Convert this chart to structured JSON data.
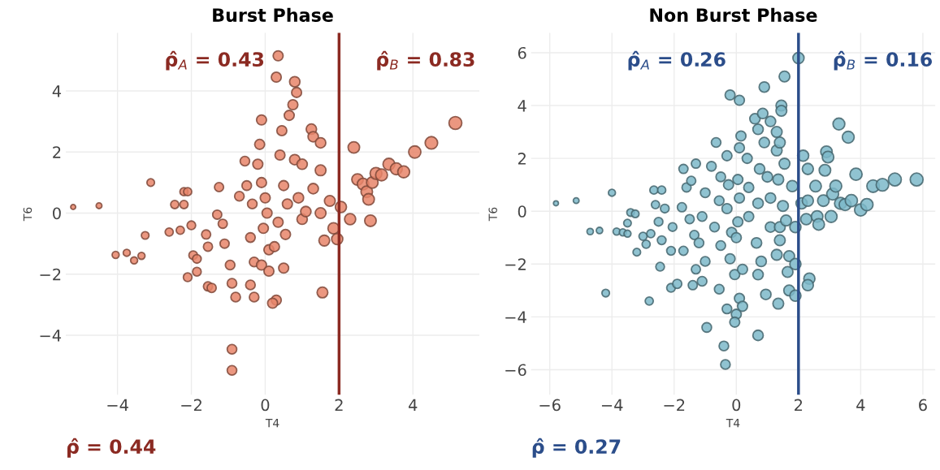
{
  "chart_data": [
    {
      "type": "bubble",
      "title": "Burst Phase",
      "xlabel": "T4",
      "ylabel": "T6",
      "annotations": [
        "ρ̂$_{A}$ = 0.43",
        "ρ̂$_{B}$ = 0.83",
        "ρ̂ = 0.44"
      ],
      "xlim": [
        -5.4,
        5.8
      ],
      "ylim": [
        -5.95,
        5.9
      ],
      "xticks": [
        -4,
        -2,
        0,
        2,
        4
      ],
      "yticks": [
        -4,
        -2,
        0,
        2,
        4
      ],
      "grid": true,
      "ref_lines": [
        {
          "axis": "x",
          "value": 2,
          "color": "#8b2a22"
        }
      ],
      "series": [
        {
          "color": "#e8856a",
          "x": [
            -5.2,
            -4.5,
            -3.1,
            -4.05,
            -3.75,
            -3.55,
            -3.35,
            -3.25,
            -2.2,
            -2.1,
            -2.45,
            -2.2,
            -2.6,
            -2.3,
            -2.0,
            -1.95,
            -1.85,
            -2.1,
            -1.85,
            -1.6,
            -1.55,
            -1.55,
            -1.45,
            -1.25,
            -1.15,
            -1.3,
            -1.1,
            -0.95,
            -0.9,
            -0.8,
            -0.9,
            -0.9,
            -0.55,
            -0.5,
            -0.7,
            -0.35,
            -0.4,
            -0.3,
            -0.4,
            -0.3,
            -0.1,
            -0.15,
            -0.2,
            -0.1,
            0.0,
            0.05,
            -0.05,
            0.1,
            -0.1,
            0.1,
            0.25,
            0.3,
            0.2,
            0.35,
            0.3,
            0.45,
            0.4,
            0.5,
            0.6,
            0.35,
            0.55,
            0.5,
            0.65,
            0.75,
            0.85,
            0.8,
            0.8,
            0.9,
            1.0,
            1.0,
            1.25,
            1.3,
            1.5,
            1.1,
            1.3,
            1.5,
            1.5,
            1.6,
            1.55,
            1.75,
            1.85,
            1.95,
            2.05,
            2.3,
            2.4,
            2.5,
            2.65,
            2.75,
            2.8,
            2.9,
            3.0,
            3.15,
            3.35,
            3.55,
            3.75,
            2.85,
            4.05,
            4.5,
            5.15
          ],
          "values": [
            0.2,
            0.24,
            1.0,
            -1.37,
            -1.3,
            -1.55,
            -1.4,
            -0.73,
            0.7,
            0.7,
            0.28,
            0.28,
            -0.62,
            -0.56,
            -0.4,
            -1.38,
            -1.5,
            -2.1,
            -1.92,
            -0.7,
            -1.1,
            -2.4,
            -2.45,
            0.85,
            -0.35,
            -0.05,
            -1.0,
            -1.7,
            -2.3,
            -2.75,
            -4.46,
            -5.15,
            1.7,
            0.9,
            0.55,
            0.3,
            -0.8,
            -1.6,
            -2.35,
            -2.75,
            3.05,
            2.25,
            1.6,
            1.0,
            0.5,
            0.0,
            -0.5,
            -1.2,
            -1.7,
            -1.9,
            -1.1,
            -2.85,
            -2.95,
            5.15,
            4.45,
            2.7,
            1.9,
            0.9,
            0.3,
            -0.3,
            -0.7,
            -1.8,
            3.2,
            3.55,
            3.95,
            4.3,
            1.75,
            0.5,
            -0.2,
            1.6,
            2.75,
            2.5,
            2.3,
            0.05,
            0.8,
            1.4,
            0.0,
            -0.9,
            -2.6,
            0.4,
            -0.5,
            -0.85,
            0.2,
            -0.2,
            2.15,
            1.1,
            0.95,
            0.7,
            0.45,
            1.0,
            1.3,
            1.25,
            1.6,
            1.45,
            1.35,
            -0.25,
            2.0,
            2.3,
            2.95
          ],
          "sizes": [
            0.15,
            0.2,
            0.35,
            0.3,
            0.3,
            0.3,
            0.3,
            0.35,
            0.4,
            0.4,
            0.4,
            0.4,
            0.4,
            0.4,
            0.45,
            0.45,
            0.45,
            0.45,
            0.45,
            0.5,
            0.5,
            0.5,
            0.5,
            0.5,
            0.5,
            0.5,
            0.5,
            0.55,
            0.55,
            0.55,
            0.55,
            0.55,
            0.55,
            0.55,
            0.55,
            0.55,
            0.55,
            0.55,
            0.55,
            0.55,
            0.6,
            0.6,
            0.6,
            0.6,
            0.6,
            0.6,
            0.6,
            0.6,
            0.6,
            0.6,
            0.6,
            0.6,
            0.6,
            0.6,
            0.6,
            0.6,
            0.6,
            0.6,
            0.6,
            0.6,
            0.6,
            0.6,
            0.6,
            0.6,
            0.6,
            0.65,
            0.65,
            0.65,
            0.65,
            0.65,
            0.65,
            0.65,
            0.65,
            0.65,
            0.65,
            0.7,
            0.7,
            0.7,
            0.7,
            0.7,
            0.75,
            0.75,
            0.75,
            0.75,
            0.8,
            0.8,
            0.8,
            0.8,
            0.8,
            0.8,
            0.85,
            0.85,
            0.85,
            0.85,
            0.85,
            0.8,
            0.9,
            0.95,
            1.0
          ]
        }
      ]
    },
    {
      "type": "bubble",
      "title": "Non Burst Phase",
      "xlabel": "T4",
      "ylabel": "T6",
      "annotations": [
        "ρ̂$_{A}$ = 0.26",
        "ρ̂$_{B}$ = 0.16",
        "ρ̂ = 0.27"
      ],
      "xlim": [
        -6.6,
        6.4
      ],
      "ylim": [
        -6.95,
        6.75
      ],
      "xticks": [
        -6,
        -4,
        -2,
        0,
        2,
        4,
        6
      ],
      "yticks": [
        -6,
        -4,
        -2,
        0,
        2,
        4,
        6
      ],
      "grid": true,
      "ref_lines": [
        {
          "axis": "x",
          "value": 2,
          "color": "#2b4d8a"
        }
      ],
      "series": [
        {
          "color": "#7db9c9",
          "x": [
            -5.8,
            -5.15,
            -4.0,
            -4.7,
            -4.4,
            -3.85,
            -3.65,
            -3.5,
            -3.4,
            -3.25,
            -3.5,
            -3.2,
            -3.0,
            -2.75,
            -2.9,
            -4.2,
            -2.8,
            -2.65,
            -2.4,
            -2.6,
            -2.3,
            -2.5,
            -2.4,
            -2.45,
            -2.05,
            -2.1,
            -2.1,
            -1.9,
            -1.7,
            -1.6,
            -1.45,
            -1.3,
            -1.75,
            -1.5,
            -1.7,
            -1.35,
            -1.3,
            -1.4,
            -1.0,
            -1.1,
            -1.2,
            -1.0,
            -1.1,
            -0.95,
            -0.8,
            -0.65,
            -0.5,
            -0.55,
            -0.7,
            -0.5,
            -0.55,
            -0.4,
            -0.35,
            -0.3,
            -0.2,
            -0.3,
            -0.25,
            -0.3,
            -0.15,
            -0.2,
            0.1,
            0.15,
            0.1,
            0.05,
            0.1,
            0.05,
            0.0,
            -0.05,
            0.0,
            -0.05,
            0.1,
            0.2,
            0.2,
            0.35,
            0.4,
            0.4,
            0.6,
            0.7,
            0.85,
            0.9,
            0.75,
            0.9,
            0.7,
            0.65,
            0.8,
            0.7,
            0.7,
            0.95,
            1.0,
            1.1,
            1.1,
            1.1,
            1.3,
            1.3,
            1.35,
            1.45,
            1.45,
            1.4,
            1.5,
            1.4,
            1.4,
            1.3,
            1.35,
            1.55,
            1.55,
            1.6,
            1.65,
            1.7,
            1.7,
            1.9,
            1.9,
            1.8,
            1.9,
            2.0,
            2.1,
            2.15,
            2.3,
            2.3,
            2.25,
            2.35,
            2.3,
            2.55,
            2.6,
            2.65,
            2.8,
            2.85,
            2.9,
            2.95,
            3.1,
            3.2,
            3.05,
            3.3,
            3.35,
            3.5,
            3.6,
            3.7,
            3.85,
            4.0,
            4.2,
            4.4,
            4.7,
            5.1,
            5.8
          ],
          "values": [
            0.3,
            0.4,
            0.7,
            -0.77,
            -0.73,
            -0.77,
            -0.8,
            -0.85,
            -0.05,
            -0.1,
            -0.45,
            -1.55,
            -0.95,
            -0.85,
            -1.25,
            -3.1,
            -3.4,
            0.8,
            0.8,
            0.25,
            0.1,
            -0.4,
            -1.1,
            -2.1,
            -0.6,
            -1.5,
            -2.9,
            -2.75,
            1.6,
            0.9,
            1.15,
            1.8,
            0.15,
            -0.3,
            -1.5,
            -0.9,
            -2.2,
            -2.8,
            0.7,
            -0.2,
            -1.2,
            -1.9,
            -2.65,
            -4.4,
            1.7,
            2.6,
            1.3,
            0.4,
            -0.6,
            -1.3,
            -2.95,
            -5.1,
            -5.8,
            -3.7,
            4.4,
            2.1,
            1.0,
            0.1,
            -0.8,
            -1.8,
            4.2,
            2.85,
            2.4,
            1.2,
            0.5,
            -0.4,
            -1.0,
            -2.4,
            -3.9,
            -4.2,
            -3.3,
            -3.6,
            -2.2,
            2.0,
            0.9,
            -0.2,
            3.5,
            3.1,
            3.7,
            4.7,
            1.6,
            2.6,
            0.3,
            -1.2,
            -1.9,
            -2.4,
            -4.7,
            -3.15,
            1.3,
            0.5,
            -0.6,
            3.4,
            3.0,
            2.3,
            1.2,
            4.0,
            3.8,
            2.6,
            0.2,
            -0.6,
            -1.1,
            -1.65,
            -3.5,
            5.1,
            1.8,
            -0.35,
            -2.3,
            -3.0,
            -1.7,
            -3.2,
            -2.0,
            0.95,
            -0.6,
            5.8,
            0.3,
            2.1,
            1.6,
            0.4,
            -0.3,
            -2.55,
            -2.8,
            0.95,
            -0.2,
            -0.5,
            0.4,
            1.55,
            2.25,
            2.05,
            0.65,
            0.95,
            -0.2,
            3.3,
            0.3,
            0.25,
            2.8,
            0.4,
            1.4,
            0.05,
            0.25,
            0.95,
            1.0,
            1.2,
            1.2
          ],
          "sizes": [
            0.15,
            0.2,
            0.3,
            0.25,
            0.25,
            0.3,
            0.3,
            0.3,
            0.35,
            0.35,
            0.35,
            0.35,
            0.4,
            0.4,
            0.4,
            0.35,
            0.4,
            0.4,
            0.4,
            0.4,
            0.45,
            0.45,
            0.45,
            0.45,
            0.45,
            0.45,
            0.45,
            0.5,
            0.5,
            0.5,
            0.5,
            0.5,
            0.5,
            0.5,
            0.5,
            0.5,
            0.5,
            0.5,
            0.55,
            0.55,
            0.55,
            0.55,
            0.55,
            0.55,
            0.55,
            0.55,
            0.55,
            0.55,
            0.55,
            0.55,
            0.55,
            0.55,
            0.55,
            0.55,
            0.6,
            0.6,
            0.6,
            0.6,
            0.6,
            0.6,
            0.6,
            0.6,
            0.6,
            0.6,
            0.6,
            0.6,
            0.6,
            0.6,
            0.6,
            0.6,
            0.6,
            0.6,
            0.6,
            0.6,
            0.6,
            0.6,
            0.65,
            0.65,
            0.65,
            0.65,
            0.65,
            0.65,
            0.65,
            0.65,
            0.65,
            0.65,
            0.65,
            0.65,
            0.65,
            0.65,
            0.65,
            0.65,
            0.7,
            0.7,
            0.7,
            0.7,
            0.7,
            0.7,
            0.7,
            0.7,
            0.7,
            0.7,
            0.7,
            0.7,
            0.7,
            0.7,
            0.7,
            0.7,
            0.7,
            0.75,
            0.75,
            0.75,
            0.75,
            0.75,
            0.75,
            0.75,
            0.75,
            0.75,
            0.75,
            0.75,
            0.75,
            0.8,
            0.8,
            0.8,
            0.8,
            0.8,
            0.8,
            0.8,
            0.85,
            0.85,
            0.85,
            0.85,
            0.85,
            0.85,
            0.85,
            0.9,
            0.9,
            0.9,
            0.9,
            0.95,
            0.95,
            1.0,
            1.0
          ]
        }
      ]
    }
  ]
}
